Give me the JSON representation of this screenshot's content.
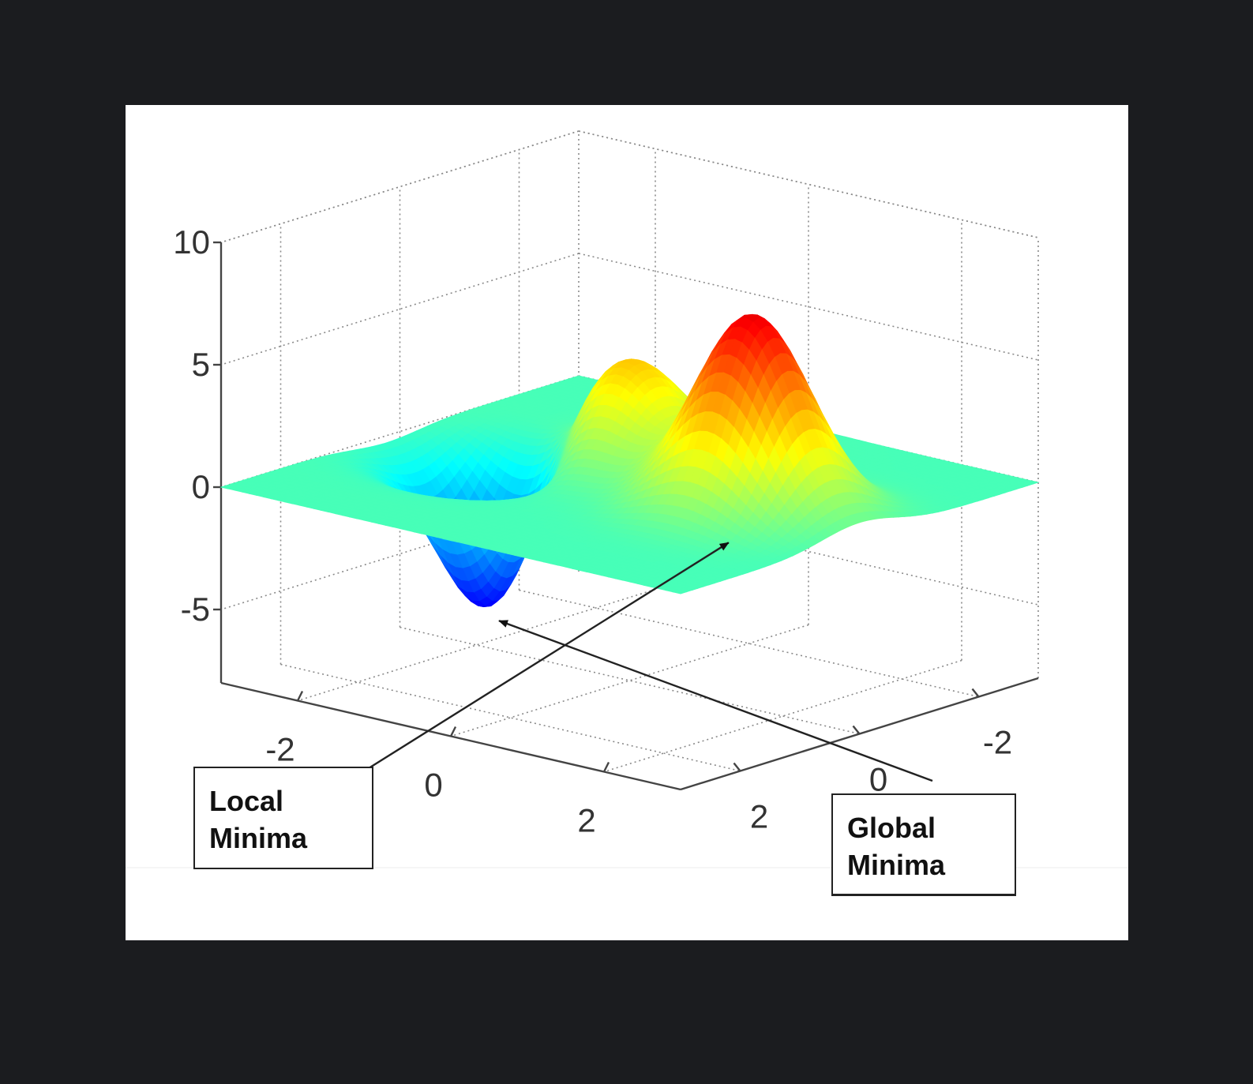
{
  "chart_data": {
    "type": "surface",
    "title": "",
    "xlabel": "",
    "ylabel": "",
    "zlabel": "",
    "x_ticks": [
      "-2",
      "0",
      "2"
    ],
    "y_ticks": [
      "-2",
      "0",
      "2"
    ],
    "z_ticks": [
      "-5",
      "0",
      "5",
      "10"
    ],
    "xlim": [
      -3,
      3
    ],
    "ylim": [
      -3,
      3
    ],
    "zlim": [
      -8,
      10
    ],
    "grid": true,
    "colormap": "jet",
    "peaks": [
      {
        "x": 0,
        "y": 1.6,
        "z": 8.1
      },
      {
        "x": -0.46,
        "y": -0.63,
        "z": 3.8
      },
      {
        "x": -1.3,
        "y": 0,
        "z": 3.6
      }
    ],
    "minima": [
      {
        "x": 0.23,
        "y": -1.63,
        "z": -6.5
      },
      {
        "x": -1.35,
        "y": 0.2,
        "z": -3.05
      }
    ],
    "annotations": [
      {
        "label_lines": [
          "Local",
          "Minima"
        ],
        "target": "local-minimum"
      },
      {
        "label_lines": [
          "Global",
          "Minima"
        ],
        "target": "global-minimum"
      }
    ],
    "colors": {
      "low": "#00008f",
      "mid": "#7fff7f",
      "high": "#800000",
      "background": "#1b1c1f",
      "plot_background": "#ffffff"
    }
  }
}
